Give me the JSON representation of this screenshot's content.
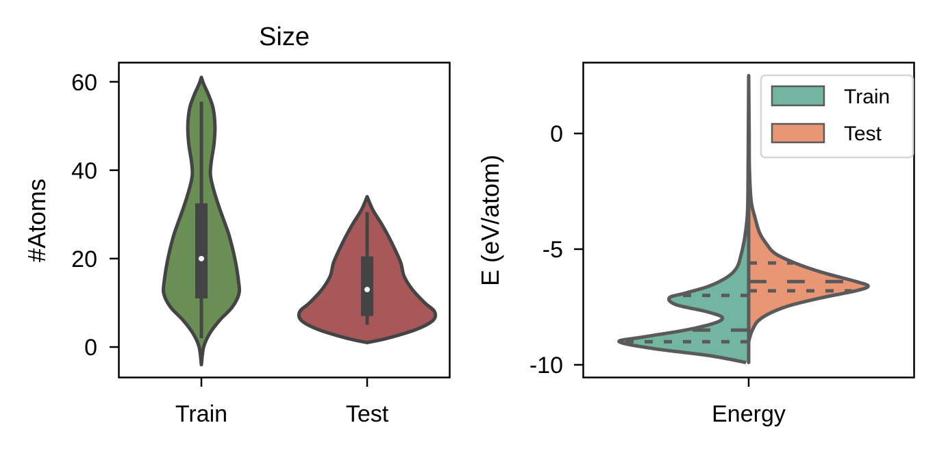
{
  "chart_data": [
    {
      "type": "violin",
      "title": "Size",
      "xlabel": "",
      "ylabel": "#Atoms",
      "ylim": [
        -7,
        64.5
      ],
      "yticks": [
        0,
        20,
        40,
        60
      ],
      "ytick_labels": [
        "0",
        "20",
        "40",
        "60"
      ],
      "categories": [
        "Train",
        "Test"
      ],
      "grid": false,
      "series": [
        {
          "name": "Train",
          "color": "#6a8f55",
          "min": -4,
          "max": 61,
          "whisker_low": 2,
          "q1": 11,
          "median": 20,
          "q3": 32.5,
          "whisker_high": 55.5,
          "density_profile": [
            [
              -4,
              0.0
            ],
            [
              0,
              0.05
            ],
            [
              3,
              0.18
            ],
            [
              6,
              0.4
            ],
            [
              9,
              0.68
            ],
            [
              12,
              0.83
            ],
            [
              15,
              0.82
            ],
            [
              20,
              0.74
            ],
            [
              25,
              0.62
            ],
            [
              28,
              0.52
            ],
            [
              32,
              0.38
            ],
            [
              36,
              0.26
            ],
            [
              39,
              0.2
            ],
            [
              42,
              0.22
            ],
            [
              46,
              0.28
            ],
            [
              50,
              0.3
            ],
            [
              54,
              0.26
            ],
            [
              57,
              0.16
            ],
            [
              59.5,
              0.05
            ],
            [
              61,
              0.0
            ]
          ]
        },
        {
          "name": "Test",
          "color": "#a9585a",
          "min": 1,
          "max": 34,
          "whisker_low": 5,
          "q1": 7,
          "median": 13,
          "q3": 20.5,
          "whisker_high": 30.5,
          "density_profile": [
            [
              1,
              0.0
            ],
            [
              2,
              0.25
            ],
            [
              4,
              0.6
            ],
            [
              6,
              0.8
            ],
            [
              8,
              0.82
            ],
            [
              10,
              0.7
            ],
            [
              13,
              0.55
            ],
            [
              16,
              0.45
            ],
            [
              19,
              0.41
            ],
            [
              22,
              0.34
            ],
            [
              25,
              0.26
            ],
            [
              28,
              0.17
            ],
            [
              31,
              0.07
            ],
            [
              34,
              0.0
            ]
          ]
        }
      ]
    },
    {
      "type": "split-violin",
      "title": "",
      "xlabel": "",
      "ylabel": "E (eV/atom)",
      "ylim": [
        -10.57,
        3.07
      ],
      "yticks": [
        0,
        -5,
        -10
      ],
      "ytick_labels": [
        "0",
        "-5",
        "-10"
      ],
      "categories": [
        "Energy"
      ],
      "grid": false,
      "legend": {
        "position": "upper right",
        "entries": [
          "Train",
          "Test"
        ]
      },
      "series": [
        {
          "name": "Train",
          "side": "left",
          "color": "#72b5a0",
          "min": -9.9,
          "max": 2.5,
          "quartiles": [
            -9.0,
            -8.5,
            -7.0
          ],
          "density_profile": [
            [
              -9.9,
              0.02
            ],
            [
              -9.6,
              0.3
            ],
            [
              -9.3,
              0.72
            ],
            [
              -9.0,
              0.98
            ],
            [
              -8.8,
              0.8
            ],
            [
              -8.5,
              0.48
            ],
            [
              -8.2,
              0.26
            ],
            [
              -7.95,
              0.2
            ],
            [
              -7.7,
              0.32
            ],
            [
              -7.4,
              0.55
            ],
            [
              -7.1,
              0.6
            ],
            [
              -6.9,
              0.48
            ],
            [
              -6.6,
              0.3
            ],
            [
              -6.2,
              0.16
            ],
            [
              -5.8,
              0.09
            ],
            [
              -5.3,
              0.06
            ],
            [
              -4.5,
              0.03
            ],
            [
              -3.5,
              0.01
            ],
            [
              -2.0,
              0.005
            ],
            [
              2.5,
              0.0
            ]
          ]
        },
        {
          "name": "Test",
          "side": "right",
          "color": "#e89673",
          "min": -9.0,
          "max": 2.5,
          "quartiles": [
            -6.8,
            -6.4,
            -5.6
          ],
          "density_profile": [
            [
              -9.0,
              0.0
            ],
            [
              -8.5,
              0.03
            ],
            [
              -8.0,
              0.1
            ],
            [
              -7.5,
              0.3
            ],
            [
              -7.1,
              0.6
            ],
            [
              -6.8,
              0.88
            ],
            [
              -6.6,
              0.98
            ],
            [
              -6.4,
              0.88
            ],
            [
              -6.0,
              0.6
            ],
            [
              -5.6,
              0.38
            ],
            [
              -5.2,
              0.22
            ],
            [
              -4.8,
              0.15
            ],
            [
              -4.3,
              0.09
            ],
            [
              -3.6,
              0.05
            ],
            [
              -2.9,
              0.02
            ],
            [
              -1.5,
              0.006
            ],
            [
              0,
              0.004
            ],
            [
              2.5,
              0.0
            ]
          ]
        }
      ]
    }
  ],
  "labels": {
    "left_title": "Size",
    "left_ylabel": "#Atoms",
    "left_xticks": [
      "Train",
      "Test"
    ],
    "left_yticks": [
      "60",
      "40",
      "20",
      "0"
    ],
    "right_ylabel": "E (eV/atom)",
    "right_xticks": [
      "Energy"
    ],
    "right_yticks": [
      "0",
      "-5",
      "-10"
    ],
    "legend": [
      "Train",
      "Test"
    ]
  },
  "colors": {
    "train_green": "#6a8f55",
    "test_red": "#a9585a",
    "train_teal": "#72b5a0",
    "test_orange": "#e89673",
    "left_edge": "#444444",
    "right_edge": "#5a5a5a"
  }
}
